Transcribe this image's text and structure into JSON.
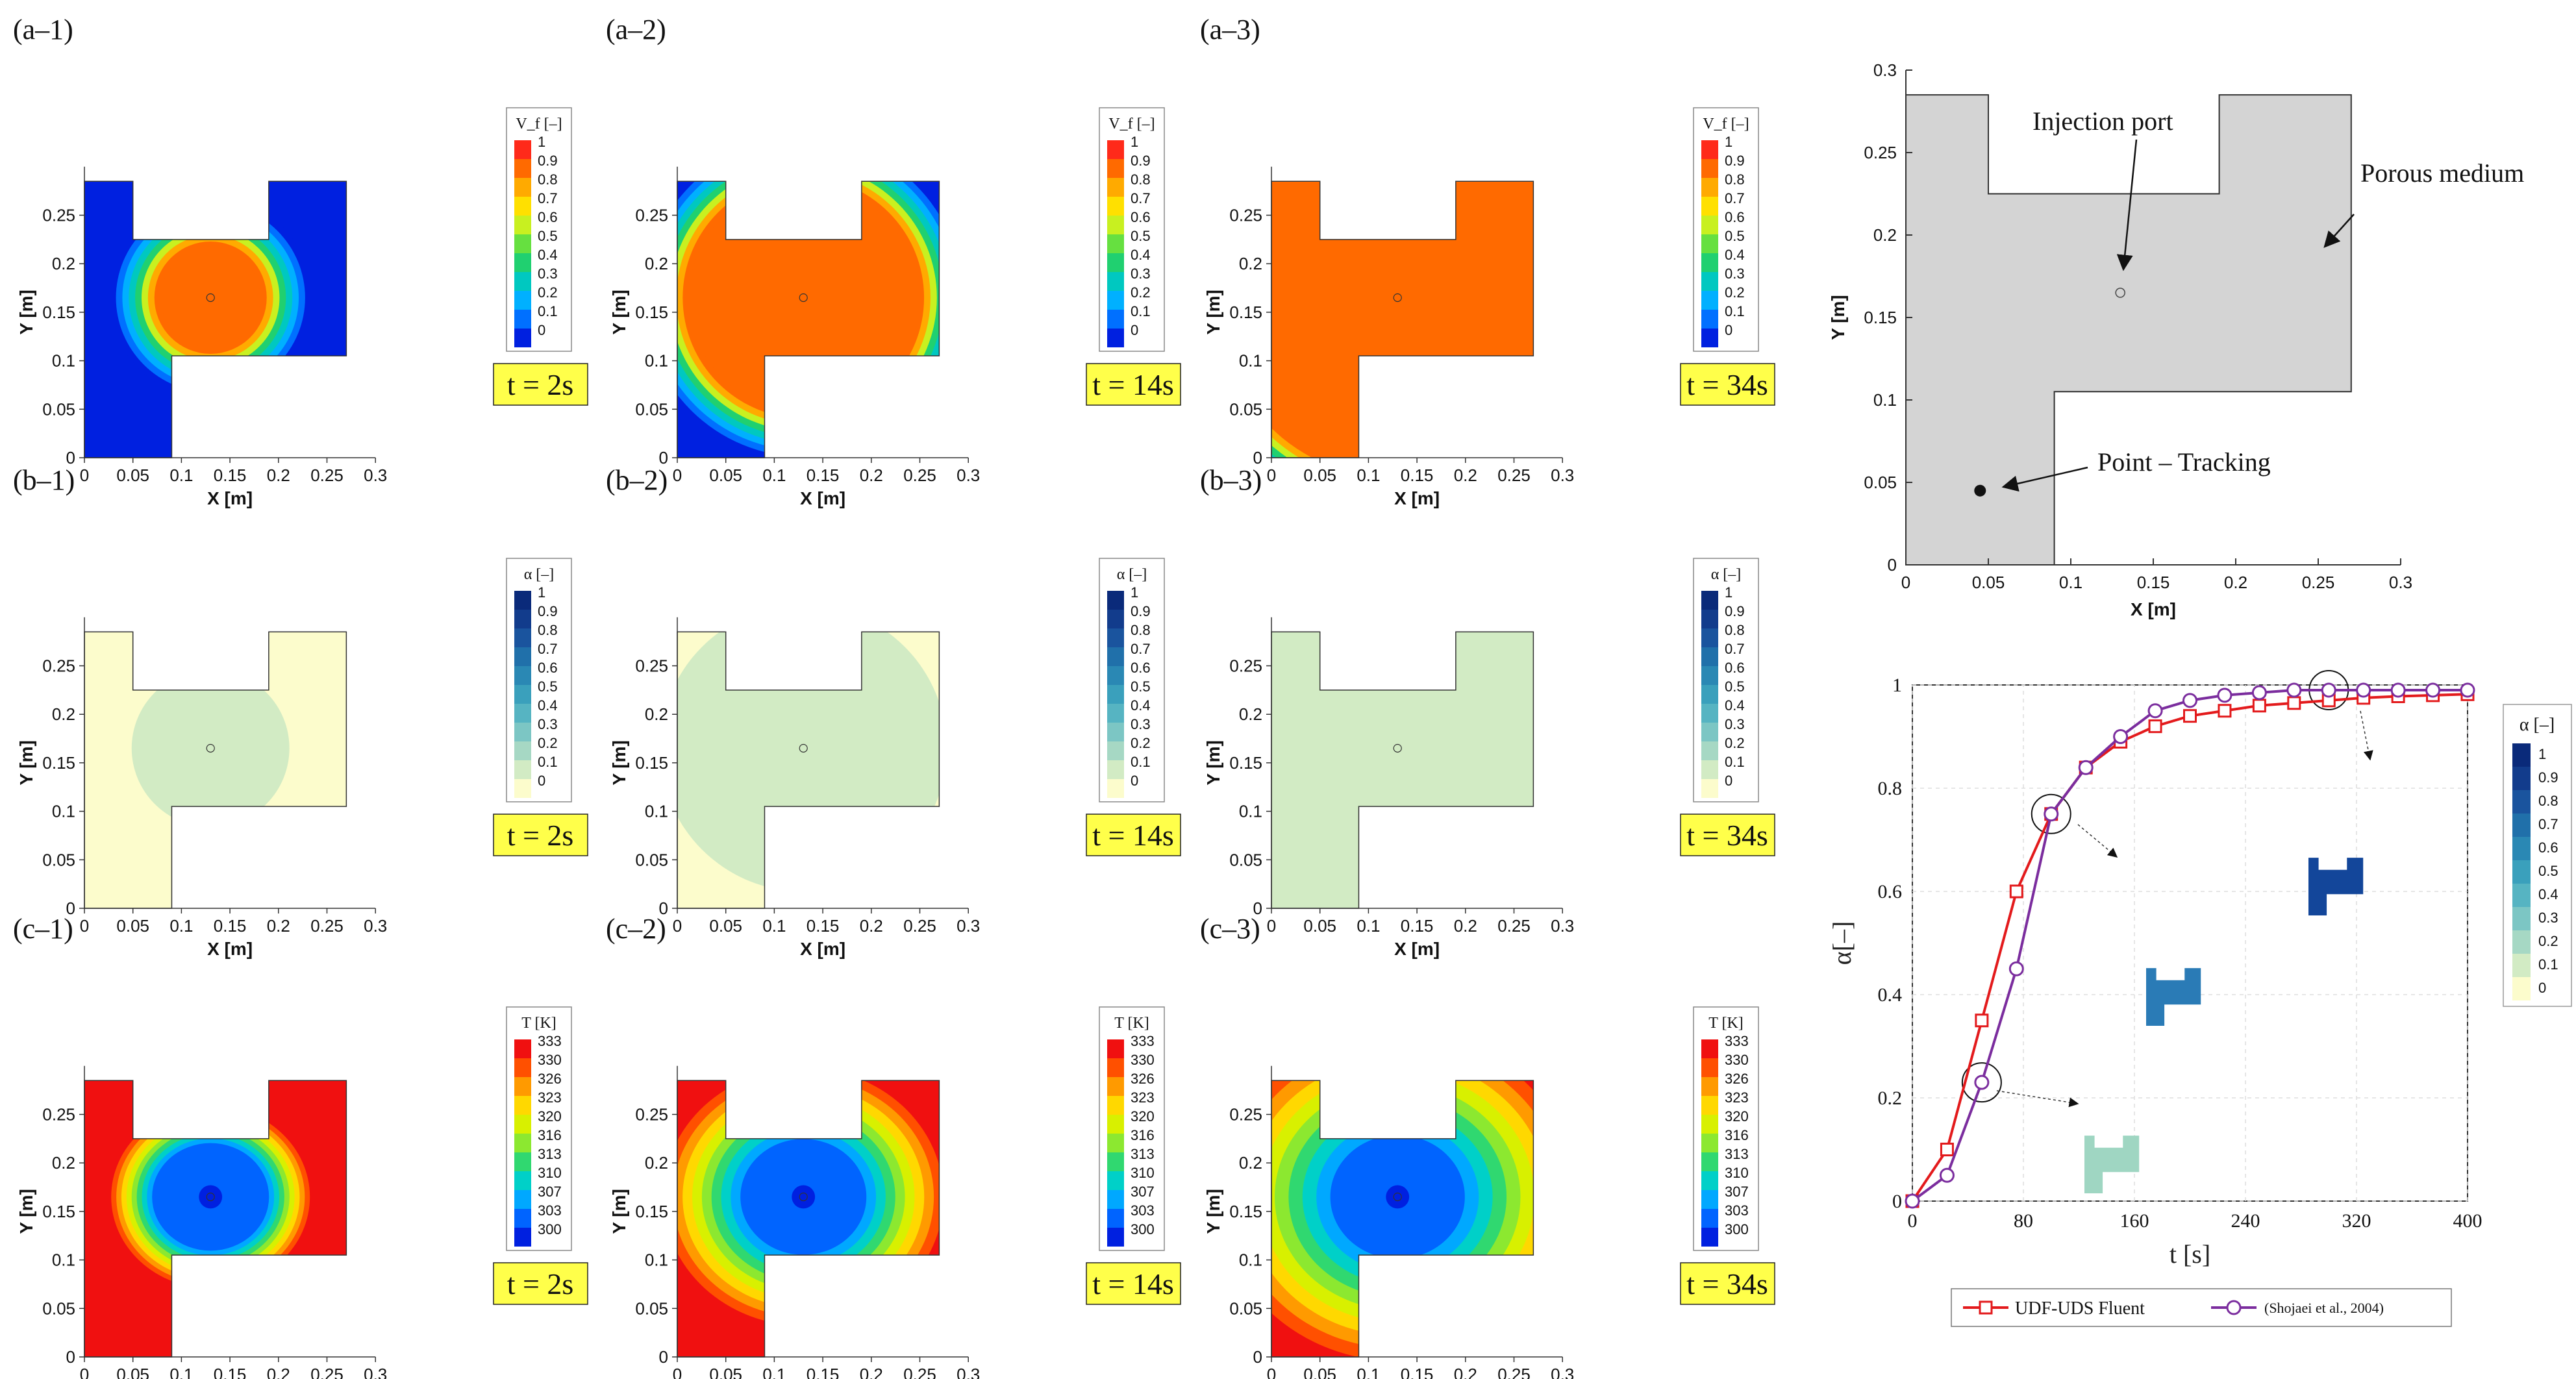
{
  "panels": [
    {
      "label": "(a–1)",
      "var": "vf",
      "time": "t = 2s",
      "leg": "V_f [–]",
      "state": {
        "r": 0.27,
        "fronts": [],
        "full": false
      }
    },
    {
      "label": "(a–2)",
      "var": "vf",
      "time": "t = 14s",
      "leg": "V_f [–]",
      "state": {
        "r": 0.62
      }
    },
    {
      "label": "(a–3)",
      "var": "vf",
      "time": "t = 34s",
      "leg": "V_f [–]",
      "state": {
        "r": 0.95
      }
    },
    {
      "label": "(b–1)",
      "var": "alpha",
      "time": "t = 2s",
      "leg": "α [–]",
      "state": {
        "r": 0.27
      }
    },
    {
      "label": "(b–2)",
      "var": "alpha",
      "time": "t = 14s",
      "leg": "α [–]",
      "state": {
        "r": 0.62
      }
    },
    {
      "label": "(b–3)",
      "var": "alpha",
      "time": "t = 34s",
      "leg": "α [–]",
      "state": {
        "r": 0.95
      }
    },
    {
      "label": "(c–1)",
      "var": "T",
      "time": "t = 2s",
      "leg": "T [K]",
      "state": {
        "r": 0.27
      }
    },
    {
      "label": "(c–2)",
      "var": "T",
      "time": "t = 14s",
      "leg": "T [K]",
      "state": {
        "r": 0.62
      }
    },
    {
      "label": "(c–3)",
      "var": "T",
      "time": "t = 34s",
      "leg": "T [K]",
      "state": {
        "r": 0.95
      }
    }
  ],
  "legends": {
    "vf": {
      "ticks": [
        "1",
        "0.9",
        "0.8",
        "0.7",
        "0.6",
        "0.5",
        "0.4",
        "0.3",
        "0.2",
        "0.1",
        "0"
      ],
      "colors": [
        "#ff2a1a",
        "#ff6a00",
        "#ffaa00",
        "#ffe000",
        "#c8f020",
        "#66e040",
        "#20d070",
        "#00c8c0",
        "#00b0ff",
        "#0070ff",
        "#0020e0"
      ]
    },
    "alpha": {
      "ticks": [
        "1",
        "0.9",
        "0.8",
        "0.7",
        "0.6",
        "0.5",
        "0.4",
        "0.3",
        "0.2",
        "0.1",
        "0"
      ],
      "colors": [
        "#0a2a7a",
        "#123c8c",
        "#1a549e",
        "#2070aa",
        "#2a88b4",
        "#3aa0bc",
        "#56b4c2",
        "#7cc6c4",
        "#a6d8c4",
        "#d2ebc4",
        "#fcfccc"
      ]
    },
    "T": {
      "ticks": [
        "333",
        "330",
        "326",
        "323",
        "320",
        "316",
        "313",
        "310",
        "307",
        "303",
        "300"
      ],
      "colors": [
        "#f01010",
        "#ff5000",
        "#ff9a00",
        "#ffd800",
        "#d8f000",
        "#8ce830",
        "#30d870",
        "#00d0c8",
        "#00a8ff",
        "#0064ff",
        "#0020e0"
      ]
    }
  },
  "axes": {
    "xlabel": "X [m]",
    "ylabel": "Y [m]",
    "xticks": [
      "0",
      "0.05",
      "0.1",
      "0.15",
      "0.2",
      "0.25",
      "0.3"
    ],
    "yticks": [
      "0",
      "0.05",
      "0.1",
      "0.15",
      "0.2",
      "0.25"
    ]
  },
  "geometry_panel": {
    "xticks": [
      "0",
      "0.05",
      "0.1",
      "0.15",
      "0.2",
      "0.25",
      "0.3"
    ],
    "yticks": [
      "0",
      "0.05",
      "0.1",
      "0.15",
      "0.2",
      "0.25",
      "0.3"
    ],
    "xlabel": "X [m]",
    "ylabel": "Y [m]",
    "injection": "Injection port",
    "porous": "Porous medium",
    "tracking": "Point – Tracking"
  },
  "chart_data": {
    "type": "line",
    "title": "",
    "xlabel": "t [s]",
    "ylabel": "α[–]",
    "xlim": [
      0,
      400
    ],
    "ylim": [
      0,
      1
    ],
    "xticks": [
      "0",
      "80",
      "160",
      "240",
      "320",
      "400"
    ],
    "yticks": [
      "0",
      "0.2",
      "0.4",
      "0.6",
      "0.8",
      "1"
    ],
    "grid": true,
    "legend_position": "bottom",
    "series": [
      {
        "name": "UDF-UDS Fluent",
        "color": "#e31a1c",
        "marker": "square",
        "x": [
          0,
          25,
          50,
          75,
          100,
          125,
          150,
          175,
          200,
          225,
          250,
          275,
          300,
          325,
          350,
          375,
          400
        ],
        "y": [
          0,
          0.1,
          0.35,
          0.6,
          0.75,
          0.84,
          0.89,
          0.92,
          0.94,
          0.95,
          0.96,
          0.965,
          0.97,
          0.975,
          0.978,
          0.98,
          0.982
        ]
      },
      {
        "name": "(Shojaei et al., 2004)",
        "color": "#7b2d9e",
        "marker": "circle",
        "x": [
          0,
          25,
          50,
          75,
          100,
          125,
          150,
          175,
          200,
          225,
          250,
          275,
          300,
          325,
          350,
          375,
          400
        ],
        "y": [
          0,
          0.05,
          0.23,
          0.45,
          0.75,
          0.84,
          0.9,
          0.95,
          0.97,
          0.98,
          0.985,
          0.99,
          0.99,
          0.99,
          0.99,
          0.99,
          0.99
        ]
      }
    ],
    "inset_legend": {
      "title": "α [–]",
      "ticks": [
        "1",
        "0.9",
        "0.8",
        "0.7",
        "0.6",
        "0.5",
        "0.4",
        "0.3",
        "0.2",
        "0.1",
        "0"
      ]
    }
  }
}
